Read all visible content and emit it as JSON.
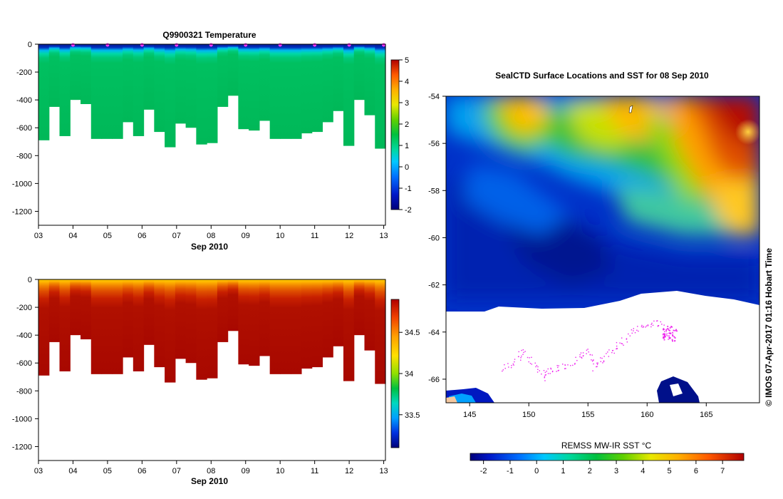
{
  "chart_data": [
    {
      "type": "heatmap",
      "title": "Q9900321  Temperature",
      "xlabel": "Sep 2010",
      "ylabel": "",
      "x_ticks": [
        "03",
        "04",
        "05",
        "06",
        "07",
        "08",
        "09",
        "10",
        "11",
        "12",
        "13"
      ],
      "y_ticks": [
        "0",
        "-200",
        "-400",
        "-600",
        "-800",
        "-1000",
        "-1200"
      ],
      "xlim": [
        3,
        13.05
      ],
      "ylim": [
        -1300,
        0
      ],
      "profile_max_depths": [
        690,
        450,
        660,
        400,
        430,
        680,
        680,
        680,
        560,
        660,
        470,
        630,
        740,
        570,
        600,
        720,
        710,
        450,
        370,
        610,
        620,
        550,
        680,
        680,
        680,
        640,
        630,
        560,
        480,
        730,
        400,
        510,
        750
      ],
      "markers": [
        4,
        5,
        6,
        7,
        8,
        9,
        10,
        11,
        12,
        13
      ],
      "colorbar": {
        "min": -2,
        "max": 5,
        "ticks": [
          "-2",
          "-1",
          "0",
          "1",
          "2",
          "3",
          "4",
          "5"
        ]
      },
      "legend": "colorbar-right"
    },
    {
      "type": "heatmap",
      "title": "",
      "xlabel": "Sep 2010",
      "ylabel": "",
      "x_ticks": [
        "03",
        "04",
        "05",
        "06",
        "07",
        "08",
        "09",
        "10",
        "11",
        "12",
        "13"
      ],
      "y_ticks": [
        "0",
        "-200",
        "-400",
        "-600",
        "-800",
        "-1000",
        "-1200"
      ],
      "xlim": [
        3,
        13.05
      ],
      "ylim": [
        -1300,
        0
      ],
      "profile_max_depths": [
        690,
        450,
        660,
        400,
        430,
        680,
        680,
        680,
        560,
        660,
        470,
        630,
        740,
        570,
        600,
        720,
        710,
        450,
        370,
        610,
        620,
        550,
        680,
        680,
        680,
        640,
        630,
        560,
        480,
        730,
        400,
        510,
        750
      ],
      "colorbar": {
        "min": 33.1,
        "max": 34.9,
        "ticks": [
          "33.5",
          "34",
          "34.5"
        ]
      },
      "legend": "colorbar-right"
    },
    {
      "type": "heatmap",
      "title": "SealCTD Surface Locations and SST for 08 Sep 2010",
      "xlabel": "",
      "ylabel": "",
      "x_ticks": [
        "145",
        "150",
        "155",
        "160",
        "165"
      ],
      "y_ticks": [
        "-54",
        "-56",
        "-58",
        "-60",
        "-62",
        "-64",
        "-66"
      ],
      "xlim": [
        143,
        169.5
      ],
      "ylim": [
        -67,
        -54
      ],
      "sea_ice_edge_lat": -63.0,
      "seal_track_region": "lon 147-163, lat -66 to -63.5",
      "colorbar": {
        "label": "REMSS MW-IR SST °C",
        "min": -2.5,
        "max": 7.8,
        "ticks": [
          "-2",
          "-1",
          "0",
          "1",
          "2",
          "3",
          "4",
          "5",
          "6",
          "7"
        ],
        "placement": "bottom"
      },
      "legend": "colorbar-bottom"
    }
  ],
  "credit": "© IMOS 07-Apr-2017 01:16 Hobart Time",
  "colors": {
    "marker": "#ff33ff",
    "track": "#ee22ee",
    "white": "#ffffff",
    "land": "#f4c8a0"
  }
}
